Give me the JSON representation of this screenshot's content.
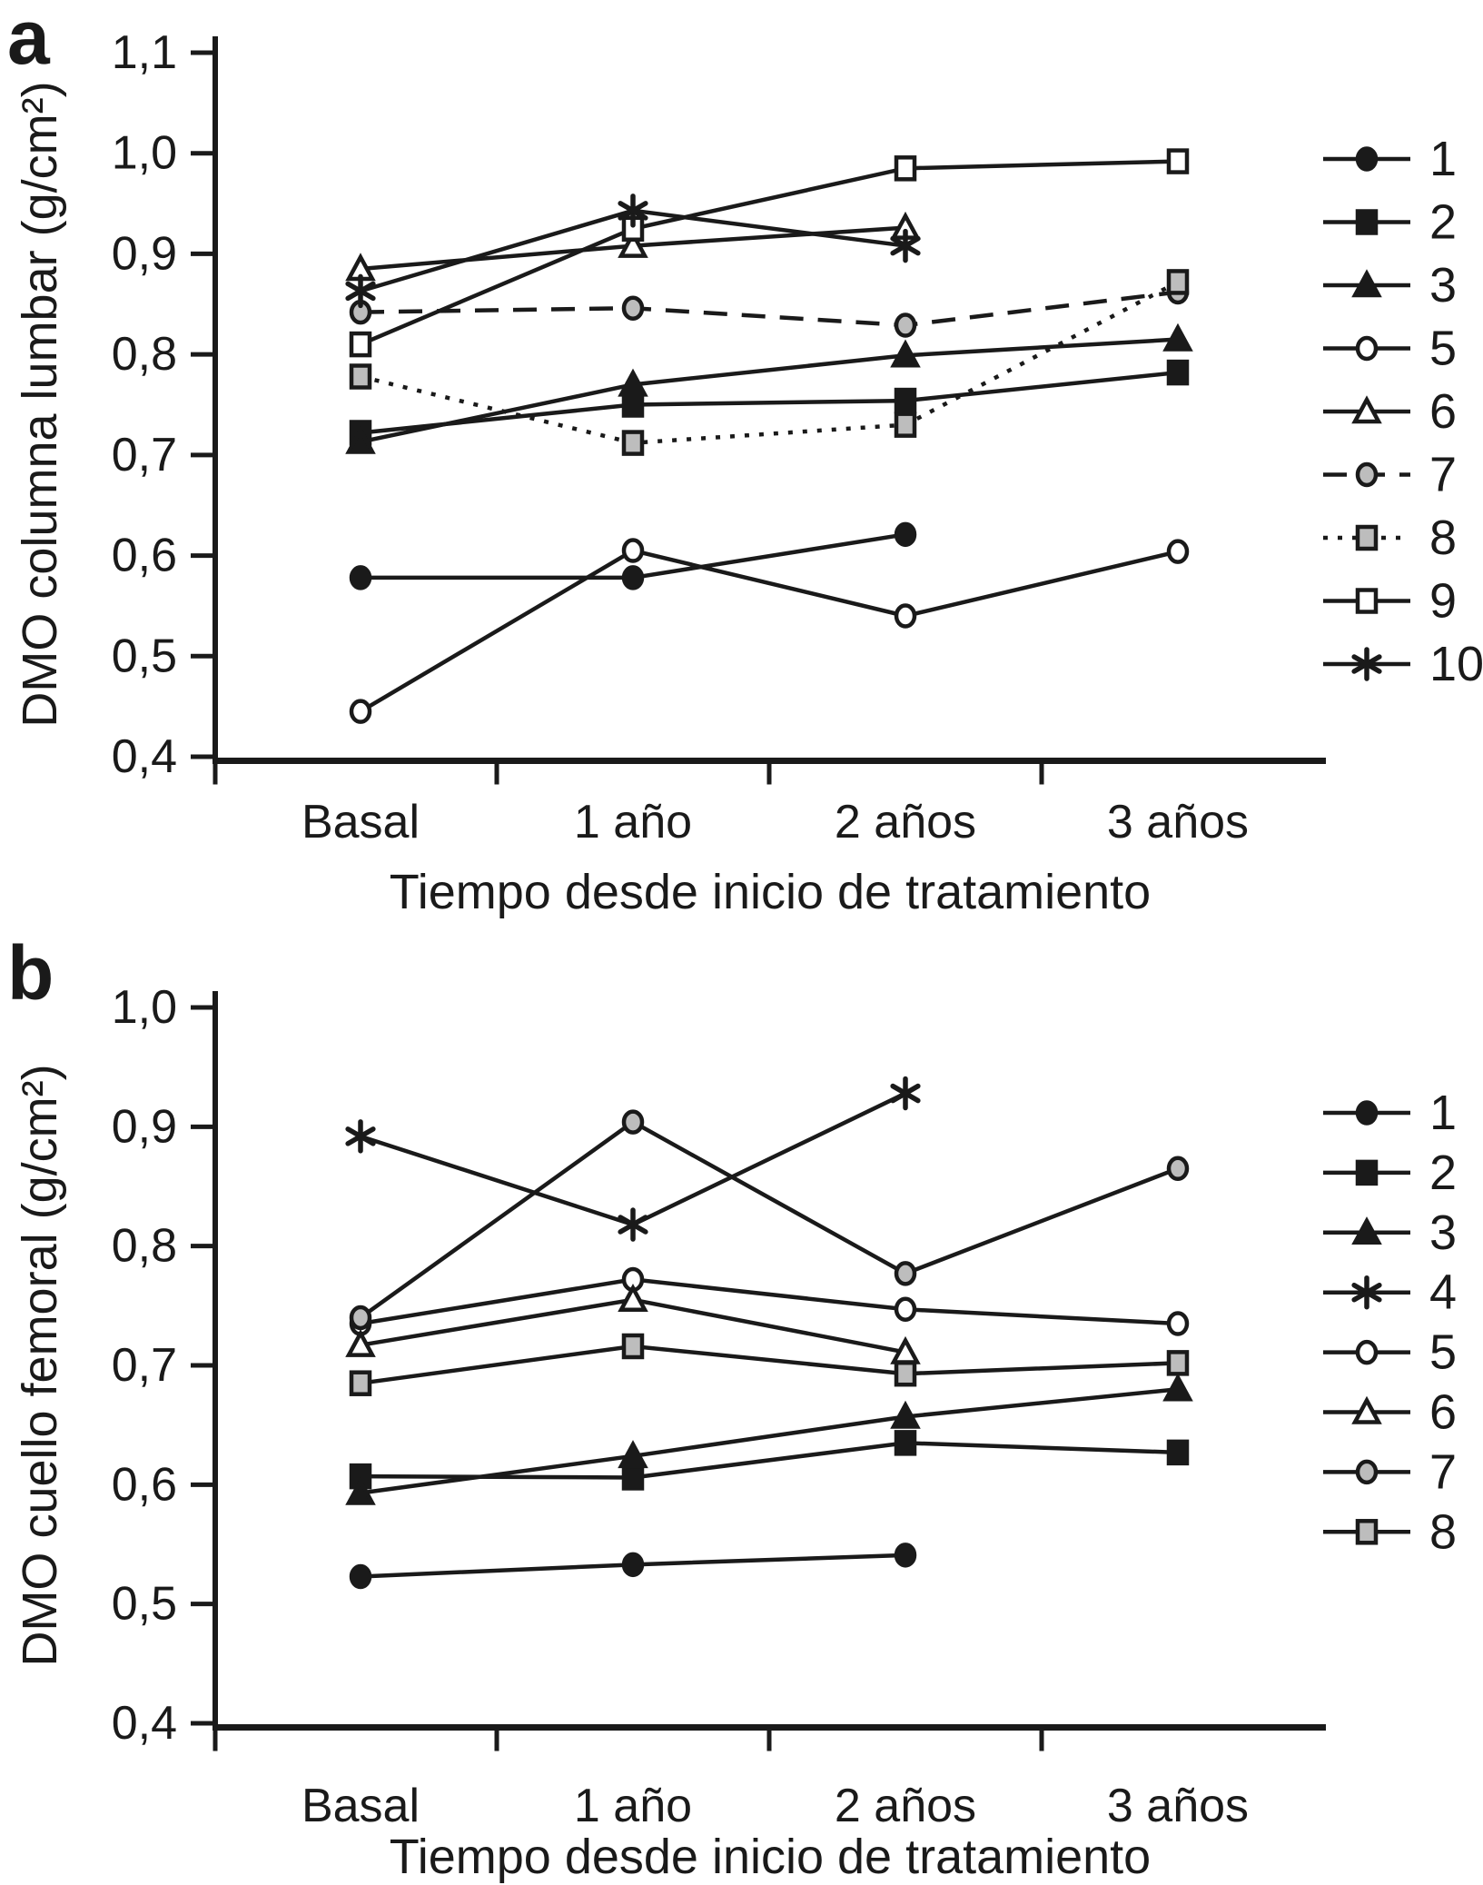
{
  "figure": {
    "background": "#ffffff",
    "ink_color": "#1a1a1a",
    "gray_fill": "#bdbdbd",
    "white_fill": "#ffffff"
  },
  "panels": [
    {
      "panel_label": "a",
      "chart_data": {
        "type": "line",
        "xlabel": "Tiempo desde inicio de tratamiento",
        "ylabel": "DMO columna lumbar (g/cm²)",
        "categories": [
          "Basal",
          "1 año",
          "2 años",
          "3 años"
        ],
        "ylim": [
          0.4,
          1.1
        ],
        "ytick_labels": [
          "1,1",
          "1,0",
          "0,9",
          "0,8",
          "0,7",
          "0,6",
          "0,5",
          "0,4"
        ],
        "ytick_values": [
          1.1,
          1.0,
          0.9,
          0.8,
          0.7,
          0.6,
          0.5,
          0.4
        ],
        "grid": false,
        "legend_position": "right",
        "series": [
          {
            "label": "1",
            "marker": "circle",
            "fill": "black",
            "line": "solid",
            "values": [
              0.578,
              0.578,
              0.621,
              null
            ]
          },
          {
            "label": "2",
            "marker": "square",
            "fill": "black",
            "line": "solid",
            "values": [
              0.722,
              0.75,
              0.754,
              0.782
            ]
          },
          {
            "label": "3",
            "marker": "triangle",
            "fill": "black",
            "line": "solid",
            "values": [
              0.713,
              0.77,
              0.799,
              0.815
            ]
          },
          {
            "label": "5",
            "marker": "circle",
            "fill": "white",
            "line": "solid",
            "values": [
              0.445,
              0.605,
              0.54,
              0.604
            ]
          },
          {
            "label": "6",
            "marker": "triangle",
            "fill": "white",
            "line": "solid",
            "values": [
              0.885,
              0.908,
              0.926,
              null
            ]
          },
          {
            "label": "7",
            "marker": "circle",
            "fill": "gray",
            "line": "dashed",
            "values": [
              0.842,
              0.846,
              0.829,
              0.862
            ]
          },
          {
            "label": "8",
            "marker": "square",
            "fill": "gray",
            "line": "dotted",
            "values": [
              0.778,
              0.712,
              0.73,
              0.872
            ]
          },
          {
            "label": "9",
            "marker": "square",
            "fill": "white",
            "line": "solid",
            "values": [
              0.81,
              0.925,
              0.985,
              0.992
            ]
          },
          {
            "label": "10",
            "marker": "asterisk",
            "fill": "black",
            "line": "solid",
            "values": [
              0.863,
              0.943,
              0.908,
              null
            ]
          }
        ]
      }
    },
    {
      "panel_label": "b",
      "chart_data": {
        "type": "line",
        "xlabel": "Tiempo desde inicio de tratamiento",
        "ylabel": "DMO cuello femoral (g/cm²)",
        "categories": [
          "Basal",
          "1 año",
          "2 años",
          "3 años"
        ],
        "ylim": [
          0.4,
          1.0
        ],
        "ytick_labels": [
          "1,0",
          "0,9",
          "0,8",
          "0,7",
          "0,6",
          "0,5",
          "0,4"
        ],
        "ytick_values": [
          1.0,
          0.9,
          0.8,
          0.7,
          0.6,
          0.5,
          0.4
        ],
        "grid": false,
        "legend_position": "right",
        "series": [
          {
            "label": "1",
            "marker": "circle",
            "fill": "black",
            "line": "solid",
            "values": [
              0.523,
              0.533,
              0.541,
              null
            ]
          },
          {
            "label": "2",
            "marker": "square",
            "fill": "black",
            "line": "solid",
            "values": [
              0.607,
              0.606,
              0.635,
              0.627
            ]
          },
          {
            "label": "3",
            "marker": "triangle",
            "fill": "black",
            "line": "solid",
            "values": [
              0.593,
              0.624,
              0.657,
              0.68
            ]
          },
          {
            "label": "4",
            "marker": "asterisk",
            "fill": "black",
            "line": "solid",
            "values": [
              0.892,
              0.818,
              0.928,
              null
            ]
          },
          {
            "label": "5",
            "marker": "circle",
            "fill": "white",
            "line": "solid",
            "values": [
              0.735,
              0.772,
              0.747,
              0.735
            ]
          },
          {
            "label": "6",
            "marker": "triangle",
            "fill": "white",
            "line": "solid",
            "values": [
              0.717,
              0.755,
              0.711,
              null
            ]
          },
          {
            "label": "7",
            "marker": "circle",
            "fill": "gray",
            "line": "solid",
            "values": [
              0.74,
              0.904,
              0.777,
              0.865
            ]
          },
          {
            "label": "8",
            "marker": "square",
            "fill": "gray",
            "line": "solid",
            "values": [
              0.685,
              0.716,
              0.693,
              0.702
            ]
          }
        ]
      }
    }
  ]
}
